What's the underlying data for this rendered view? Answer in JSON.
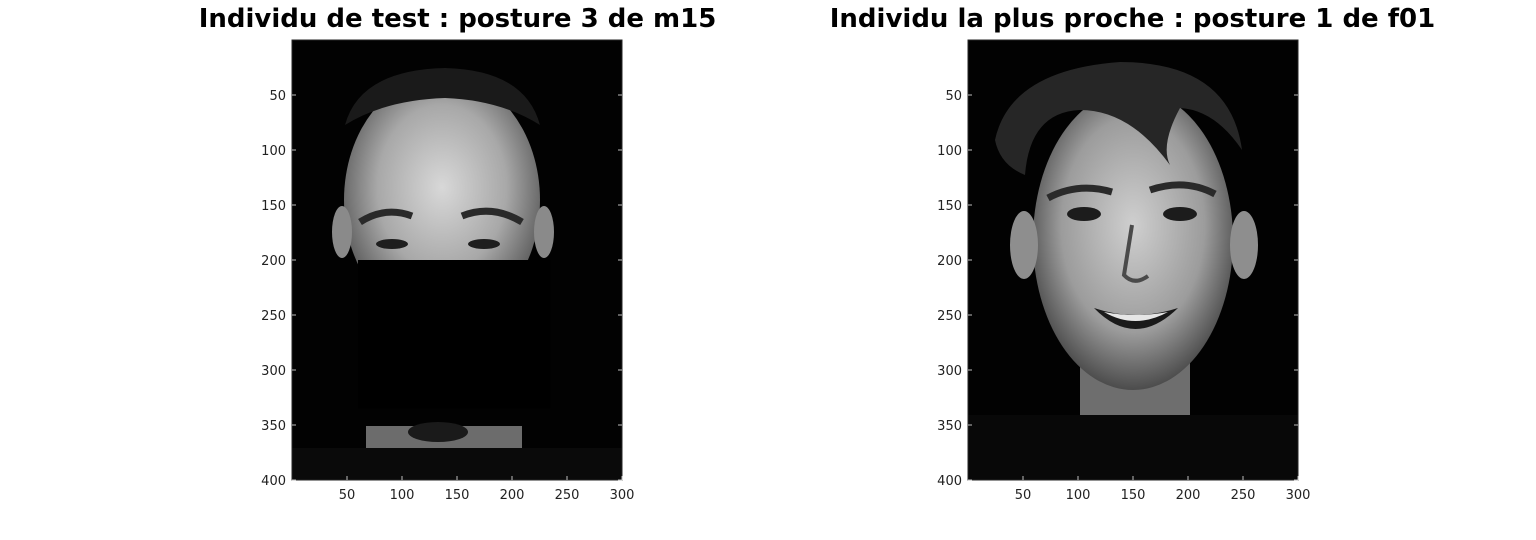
{
  "chart_data": [
    {
      "type": "heatmap",
      "title": "Individu de test : posture 3 de m15",
      "xlabel": "",
      "ylabel": "",
      "xlim": [
        0,
        300
      ],
      "ylim": [
        0,
        400
      ],
      "x_ticks": [
        50,
        100,
        150,
        200,
        250,
        300
      ],
      "y_ticks": [
        50,
        100,
        150,
        200,
        250,
        300,
        350,
        400
      ],
      "colormap": "gray",
      "occlusion": {
        "x": [
          60,
          235
        ],
        "y": [
          200,
          335
        ]
      }
    },
    {
      "type": "heatmap",
      "title": "Individu la plus proche : posture 1 de f01",
      "xlabel": "",
      "ylabel": "",
      "xlim": [
        0,
        300
      ],
      "ylim": [
        0,
        400
      ],
      "x_ticks": [
        50,
        100,
        150,
        200,
        250,
        300
      ],
      "y_ticks": [
        50,
        100,
        150,
        200,
        250,
        300,
        350,
        400
      ],
      "colormap": "gray"
    }
  ]
}
